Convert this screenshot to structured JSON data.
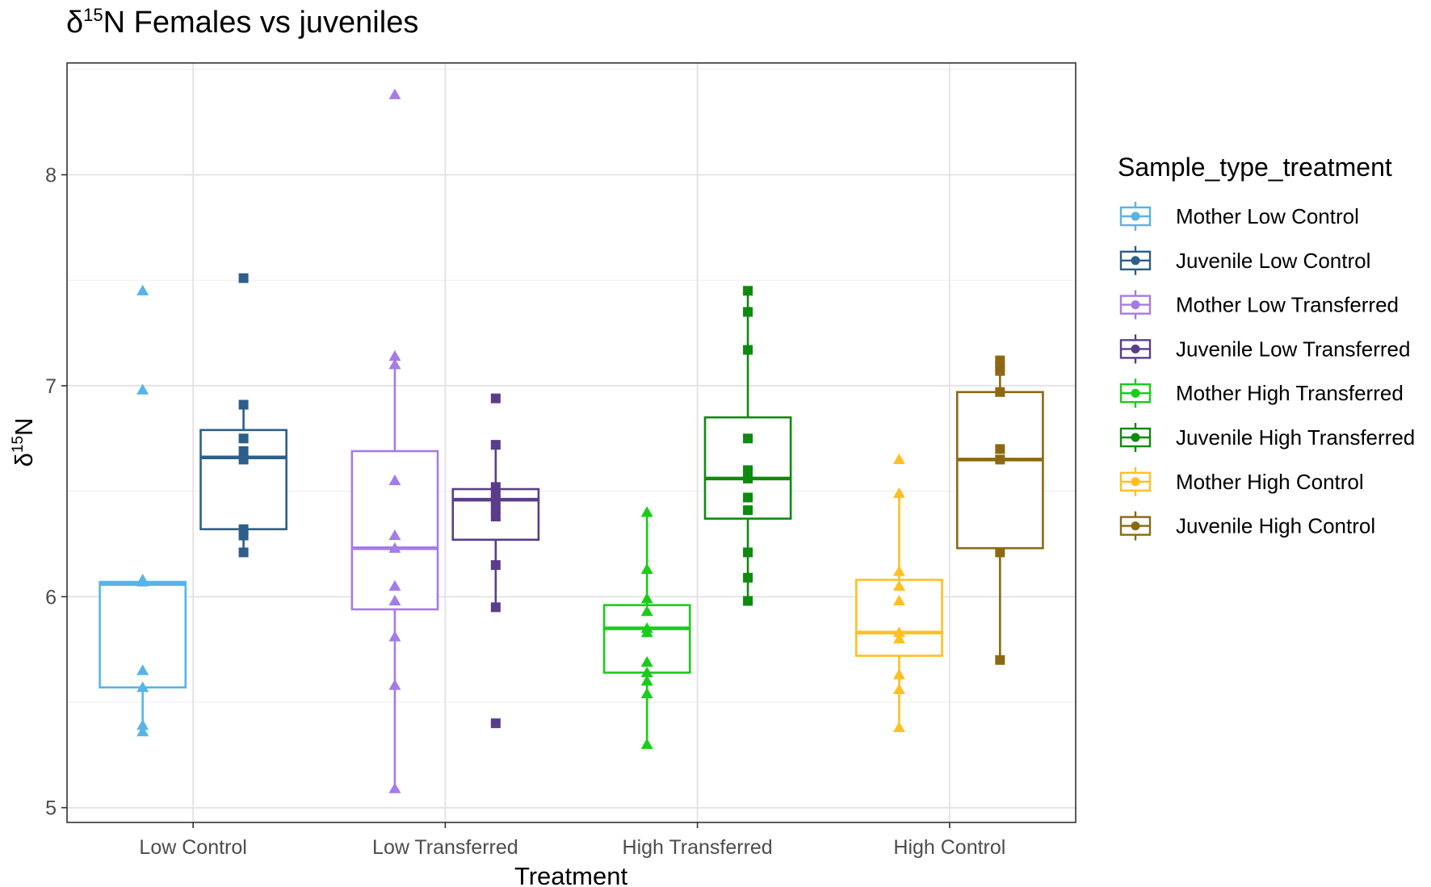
{
  "chart_data": {
    "type": "box",
    "title": {
      "delta": "δ",
      "superscript": "15",
      "rest": "N Females vs juveniles"
    },
    "xlabel": "Treatment",
    "ylabel": {
      "delta": "δ",
      "superscript": "15",
      "rest": "N"
    },
    "ylim": [
      4.93,
      8.53
    ],
    "yticks": [
      5,
      6,
      7,
      8
    ],
    "ytick_labels": [
      "5",
      "6",
      "7",
      "8"
    ],
    "categories": [
      "Low Control",
      "Low Transferred",
      "High Transferred",
      "High Control"
    ],
    "grid": true,
    "legend": {
      "title": "Sample_type_treatment",
      "placement": "right"
    },
    "series": [
      {
        "name": "Mother Low Control",
        "color": "#56B4E9",
        "marker": "triangle",
        "category": 0,
        "side": "left",
        "box": {
          "q1": 5.57,
          "median": 6.06,
          "q3": 6.07,
          "whisker_low": 5.36,
          "whisker_high": 6.07
        },
        "points": [
          7.45,
          6.98,
          6.08,
          6.07,
          5.65,
          5.57,
          5.39,
          5.36
        ]
      },
      {
        "name": "Juvenile Low Control",
        "color": "#2C5F8A",
        "marker": "square",
        "category": 0,
        "side": "right",
        "box": {
          "q1": 6.32,
          "median": 6.66,
          "q3": 6.79,
          "whisker_low": 6.21,
          "whisker_high": 6.91
        },
        "points": [
          7.51,
          6.91,
          6.75,
          6.69,
          6.65,
          6.32,
          6.29,
          6.21
        ]
      },
      {
        "name": "Mother Low Transferred",
        "color": "#A57BE8",
        "marker": "triangle",
        "category": 1,
        "side": "left",
        "box": {
          "q1": 5.94,
          "median": 6.23,
          "q3": 6.69,
          "whisker_low": 5.09,
          "whisker_high": 7.14
        },
        "points": [
          8.38,
          7.14,
          7.1,
          6.55,
          6.29,
          6.23,
          6.05,
          5.98,
          5.81,
          5.58,
          5.09
        ]
      },
      {
        "name": "Juvenile Low Transferred",
        "color": "#5A3D8A",
        "marker": "square",
        "category": 1,
        "side": "right",
        "box": {
          "q1": 6.27,
          "median": 6.46,
          "q3": 6.51,
          "whisker_low": 5.95,
          "whisker_high": 6.72
        },
        "points": [
          6.94,
          6.72,
          6.52,
          6.48,
          6.46,
          6.42,
          6.38,
          6.15,
          5.95,
          5.4
        ]
      },
      {
        "name": "Mother High Transferred",
        "color": "#19CC19",
        "marker": "triangle",
        "category": 2,
        "side": "left",
        "box": {
          "q1": 5.64,
          "median": 5.85,
          "q3": 5.96,
          "whisker_low": 5.3,
          "whisker_high": 6.4
        },
        "points": [
          6.4,
          6.13,
          5.99,
          5.93,
          5.85,
          5.83,
          5.69,
          5.64,
          5.6,
          5.54,
          5.3
        ]
      },
      {
        "name": "Juvenile High Transferred",
        "color": "#0E8A0E",
        "marker": "square",
        "category": 2,
        "side": "right",
        "box": {
          "q1": 6.37,
          "median": 6.56,
          "q3": 6.85,
          "whisker_low": 5.98,
          "whisker_high": 7.45
        },
        "points": [
          7.45,
          7.35,
          7.17,
          6.75,
          6.6,
          6.56,
          6.47,
          6.41,
          6.21,
          6.09,
          5.98
        ]
      },
      {
        "name": "Mother High Control",
        "color": "#FFC020",
        "marker": "triangle",
        "category": 3,
        "side": "left",
        "box": {
          "q1": 5.72,
          "median": 5.83,
          "q3": 6.08,
          "whisker_low": 5.38,
          "whisker_high": 6.49
        },
        "points": [
          6.65,
          6.49,
          6.12,
          6.05,
          5.98,
          5.83,
          5.8,
          5.63,
          5.56,
          5.38
        ]
      },
      {
        "name": "Juvenile High Control",
        "color": "#8B6914",
        "marker": "square",
        "category": 3,
        "side": "right",
        "box": {
          "q1": 6.23,
          "median": 6.65,
          "q3": 6.97,
          "whisker_low": 5.7,
          "whisker_high": 7.12
        },
        "points": [
          7.12,
          7.09,
          7.07,
          6.97,
          6.7,
          6.65,
          6.21,
          5.7
        ]
      }
    ]
  }
}
